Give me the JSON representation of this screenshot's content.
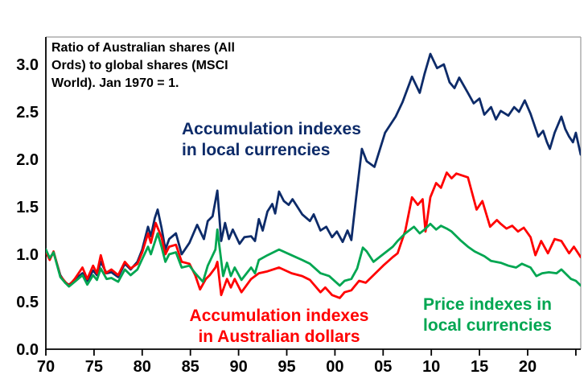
{
  "figure": {
    "background": "#ffffff",
    "title": {
      "line1": "Ratio of Australian shares (All",
      "line2": "Ords) to global shares (MSCI",
      "line3": "World). Jan 1970 = 1."
    },
    "annotations": {
      "local_accum": {
        "line1": "Accumulation indexes",
        "line2": "in local currencies",
        "color": "#0d2b69"
      },
      "aud_accum": {
        "line1": "Accumulation indexes",
        "line2": "in Australian dollars",
        "color": "#ff0000"
      },
      "price_local": {
        "line1": "Price indexes in",
        "line2": "local currencies",
        "color": "#00a651"
      }
    },
    "colors": {
      "axis": "#000000",
      "border_light": "#9a9a9a",
      "text": "#000000"
    }
  },
  "chart_data": {
    "type": "line",
    "title": "Ratio of Australian shares (All Ords) to global shares (MSCI World). Jan 1970 = 1.",
    "xlabel": "",
    "ylabel": "",
    "grid": false,
    "legend_position": "inline-colored-annotations",
    "x_axis": {
      "tick_labels": [
        "70",
        "75",
        "80",
        "85",
        "90",
        "95",
        "00",
        "05",
        "10",
        "15",
        "20"
      ],
      "tick_years": [
        1970,
        1975,
        1980,
        1985,
        1990,
        1995,
        2000,
        2005,
        2010,
        2015,
        2020
      ],
      "unlabeled_tick_years": [
        2025
      ],
      "range": [
        1970,
        2025.5
      ]
    },
    "y_axis": {
      "tick_labels": [
        "0.0",
        "0.5",
        "1.0",
        "1.5",
        "2.0",
        "2.5",
        "3.0"
      ],
      "tick_values": [
        0,
        0.5,
        1.0,
        1.5,
        2.0,
        2.5,
        3.0
      ],
      "range": [
        0,
        3.29
      ]
    },
    "series": [
      {
        "name": "Accumulation indexes in local currencies",
        "color": "#0d2b69",
        "points": [
          [
            1970.0,
            1.05
          ],
          [
            1970.4,
            0.95
          ],
          [
            1970.8,
            1.02
          ],
          [
            1971.5,
            0.78
          ],
          [
            1972.0,
            0.7
          ],
          [
            1972.4,
            0.68
          ],
          [
            1973.0,
            0.73
          ],
          [
            1973.8,
            0.8
          ],
          [
            1974.3,
            0.72
          ],
          [
            1974.9,
            0.83
          ],
          [
            1975.3,
            0.78
          ],
          [
            1975.7,
            0.92
          ],
          [
            1976.3,
            0.8
          ],
          [
            1976.8,
            0.81
          ],
          [
            1977.5,
            0.76
          ],
          [
            1978.2,
            0.9
          ],
          [
            1978.8,
            0.84
          ],
          [
            1979.5,
            0.92
          ],
          [
            1980.0,
            1.05
          ],
          [
            1980.6,
            1.29
          ],
          [
            1980.9,
            1.19
          ],
          [
            1981.3,
            1.38
          ],
          [
            1981.6,
            1.47
          ],
          [
            1982.0,
            1.28
          ],
          [
            1982.4,
            1.05
          ],
          [
            1982.8,
            1.16
          ],
          [
            1983.5,
            1.22
          ],
          [
            1984.1,
            1.0
          ],
          [
            1984.9,
            1.12
          ],
          [
            1985.7,
            1.31
          ],
          [
            1986.4,
            1.16
          ],
          [
            1986.8,
            1.35
          ],
          [
            1987.3,
            1.4
          ],
          [
            1987.8,
            1.67
          ],
          [
            1988.2,
            1.14
          ],
          [
            1988.6,
            1.33
          ],
          [
            1989.0,
            1.16
          ],
          [
            1989.4,
            1.26
          ],
          [
            1990.1,
            1.11
          ],
          [
            1990.6,
            1.18
          ],
          [
            1991.3,
            1.19
          ],
          [
            1991.7,
            1.14
          ],
          [
            1992.1,
            1.37
          ],
          [
            1992.5,
            1.25
          ],
          [
            1993.0,
            1.45
          ],
          [
            1993.5,
            1.53
          ],
          [
            1993.8,
            1.43
          ],
          [
            1994.2,
            1.66
          ],
          [
            1994.7,
            1.56
          ],
          [
            1995.2,
            1.52
          ],
          [
            1995.6,
            1.58
          ],
          [
            1996.6,
            1.42
          ],
          [
            1997.4,
            1.35
          ],
          [
            1997.8,
            1.42
          ],
          [
            1998.5,
            1.25
          ],
          [
            1999.1,
            1.29
          ],
          [
            1999.7,
            1.18
          ],
          [
            2000.2,
            1.24
          ],
          [
            2000.8,
            1.13
          ],
          [
            2001.3,
            1.25
          ],
          [
            2001.7,
            1.15
          ],
          [
            2002.2,
            1.6
          ],
          [
            2002.8,
            2.11
          ],
          [
            2003.3,
            1.98
          ],
          [
            2004.1,
            1.92
          ],
          [
            2005.2,
            2.28
          ],
          [
            2006.3,
            2.45
          ],
          [
            2007.0,
            2.6
          ],
          [
            2008.0,
            2.87
          ],
          [
            2008.8,
            2.7
          ],
          [
            2009.3,
            2.9
          ],
          [
            2009.9,
            3.11
          ],
          [
            2010.6,
            2.96
          ],
          [
            2011.3,
            3.0
          ],
          [
            2011.9,
            2.81
          ],
          [
            2012.4,
            2.75
          ],
          [
            2012.9,
            2.86
          ],
          [
            2013.8,
            2.7
          ],
          [
            2014.4,
            2.59
          ],
          [
            2015.0,
            2.64
          ],
          [
            2015.5,
            2.47
          ],
          [
            2016.2,
            2.55
          ],
          [
            2016.7,
            2.42
          ],
          [
            2017.2,
            2.51
          ],
          [
            2018.0,
            2.46
          ],
          [
            2018.6,
            2.55
          ],
          [
            2019.1,
            2.5
          ],
          [
            2019.7,
            2.62
          ],
          [
            2020.3,
            2.48
          ],
          [
            2021.1,
            2.24
          ],
          [
            2021.6,
            2.3
          ],
          [
            2022.0,
            2.18
          ],
          [
            2022.3,
            2.11
          ],
          [
            2022.8,
            2.28
          ],
          [
            2023.5,
            2.45
          ],
          [
            2023.9,
            2.32
          ],
          [
            2024.3,
            2.24
          ],
          [
            2024.7,
            2.18
          ],
          [
            2025.0,
            2.28
          ],
          [
            2025.5,
            2.05
          ]
        ]
      },
      {
        "name": "Accumulation indexes in Australian dollars",
        "color": "#ff0000",
        "points": [
          [
            1970.0,
            1.03
          ],
          [
            1970.4,
            0.94
          ],
          [
            1970.8,
            1.03
          ],
          [
            1971.5,
            0.77
          ],
          [
            1972.0,
            0.71
          ],
          [
            1972.4,
            0.67
          ],
          [
            1973.0,
            0.74
          ],
          [
            1973.8,
            0.86
          ],
          [
            1974.3,
            0.74
          ],
          [
            1974.9,
            0.88
          ],
          [
            1975.3,
            0.8
          ],
          [
            1975.7,
            0.99
          ],
          [
            1976.2,
            0.8
          ],
          [
            1976.8,
            0.84
          ],
          [
            1977.5,
            0.78
          ],
          [
            1978.2,
            0.92
          ],
          [
            1978.8,
            0.85
          ],
          [
            1979.5,
            0.9
          ],
          [
            1980.0,
            1.02
          ],
          [
            1980.6,
            1.22
          ],
          [
            1980.9,
            1.12
          ],
          [
            1981.4,
            1.33
          ],
          [
            1982.0,
            1.18
          ],
          [
            1982.4,
            1.0
          ],
          [
            1982.8,
            1.08
          ],
          [
            1983.5,
            1.1
          ],
          [
            1984.1,
            0.92
          ],
          [
            1984.9,
            0.9
          ],
          [
            1985.5,
            0.78
          ],
          [
            1986.0,
            0.63
          ],
          [
            1986.6,
            0.74
          ],
          [
            1987.0,
            0.78
          ],
          [
            1987.6,
            0.86
          ],
          [
            1987.8,
            0.92
          ],
          [
            1988.2,
            0.57
          ],
          [
            1988.8,
            0.74
          ],
          [
            1989.2,
            0.65
          ],
          [
            1989.6,
            0.74
          ],
          [
            1990.3,
            0.6
          ],
          [
            1991.3,
            0.74
          ],
          [
            1992.1,
            0.8
          ],
          [
            1993.0,
            0.82
          ],
          [
            1994.2,
            0.86
          ],
          [
            1995.5,
            0.8
          ],
          [
            1996.6,
            0.77
          ],
          [
            1997.4,
            0.73
          ],
          [
            1998.5,
            0.6
          ],
          [
            1999.0,
            0.65
          ],
          [
            1999.7,
            0.57
          ],
          [
            2000.5,
            0.54
          ],
          [
            2001.0,
            0.6
          ],
          [
            2001.7,
            0.62
          ],
          [
            2002.5,
            0.72
          ],
          [
            2003.2,
            0.7
          ],
          [
            2004.0,
            0.78
          ],
          [
            2005.0,
            0.88
          ],
          [
            2006.0,
            0.97
          ],
          [
            2006.5,
            1.01
          ],
          [
            2007.3,
            1.25
          ],
          [
            2008.0,
            1.6
          ],
          [
            2008.6,
            1.52
          ],
          [
            2009.1,
            1.58
          ],
          [
            2009.4,
            1.24
          ],
          [
            2009.9,
            1.6
          ],
          [
            2010.5,
            1.75
          ],
          [
            2011.0,
            1.7
          ],
          [
            2011.6,
            1.86
          ],
          [
            2012.1,
            1.8
          ],
          [
            2012.6,
            1.85
          ],
          [
            2013.2,
            1.83
          ],
          [
            2013.8,
            1.81
          ],
          [
            2014.7,
            1.47
          ],
          [
            2015.3,
            1.56
          ],
          [
            2016.1,
            1.29
          ],
          [
            2016.8,
            1.36
          ],
          [
            2017.2,
            1.32
          ],
          [
            2017.8,
            1.27
          ],
          [
            2018.4,
            1.3
          ],
          [
            2019.0,
            1.24
          ],
          [
            2019.6,
            1.28
          ],
          [
            2020.3,
            1.18
          ],
          [
            2020.8,
            0.99
          ],
          [
            2021.4,
            1.14
          ],
          [
            2022.1,
            1.01
          ],
          [
            2022.8,
            1.16
          ],
          [
            2023.5,
            1.14
          ],
          [
            2024.3,
            1.01
          ],
          [
            2024.8,
            1.08
          ],
          [
            2025.5,
            0.97
          ]
        ]
      },
      {
        "name": "Price indexes in local currencies",
        "color": "#00a651",
        "points": [
          [
            1970.0,
            1.05
          ],
          [
            1970.4,
            0.96
          ],
          [
            1970.8,
            1.02
          ],
          [
            1971.5,
            0.76
          ],
          [
            1972.0,
            0.7
          ],
          [
            1972.4,
            0.66
          ],
          [
            1973.0,
            0.71
          ],
          [
            1973.8,
            0.78
          ],
          [
            1974.3,
            0.68
          ],
          [
            1974.9,
            0.78
          ],
          [
            1975.3,
            0.73
          ],
          [
            1975.7,
            0.85
          ],
          [
            1976.3,
            0.74
          ],
          [
            1976.8,
            0.75
          ],
          [
            1977.5,
            0.71
          ],
          [
            1978.2,
            0.84
          ],
          [
            1978.8,
            0.78
          ],
          [
            1979.5,
            0.84
          ],
          [
            1980.0,
            0.95
          ],
          [
            1980.6,
            1.08
          ],
          [
            1980.9,
            1.0
          ],
          [
            1981.6,
            1.22
          ],
          [
            1982.0,
            1.08
          ],
          [
            1982.4,
            0.92
          ],
          [
            1982.8,
            1.0
          ],
          [
            1983.5,
            1.02
          ],
          [
            1984.1,
            0.86
          ],
          [
            1984.9,
            0.88
          ],
          [
            1985.5,
            0.8
          ],
          [
            1986.3,
            0.71
          ],
          [
            1986.8,
            0.88
          ],
          [
            1987.6,
            1.05
          ],
          [
            1987.8,
            1.26
          ],
          [
            1988.4,
            0.77
          ],
          [
            1988.8,
            0.91
          ],
          [
            1989.2,
            0.77
          ],
          [
            1989.6,
            0.86
          ],
          [
            1990.3,
            0.73
          ],
          [
            1991.3,
            0.86
          ],
          [
            1991.7,
            0.8
          ],
          [
            1992.1,
            0.94
          ],
          [
            1993.0,
            0.99
          ],
          [
            1994.2,
            1.05
          ],
          [
            1995.5,
            0.99
          ],
          [
            1996.6,
            0.94
          ],
          [
            1997.4,
            0.9
          ],
          [
            1998.5,
            0.8
          ],
          [
            1999.4,
            0.77
          ],
          [
            2000.5,
            0.67
          ],
          [
            2001.0,
            0.72
          ],
          [
            2001.7,
            0.74
          ],
          [
            2002.3,
            0.85
          ],
          [
            2002.9,
            1.07
          ],
          [
            2003.3,
            1.03
          ],
          [
            2004.0,
            0.92
          ],
          [
            2005.0,
            1.0
          ],
          [
            2006.0,
            1.08
          ],
          [
            2006.5,
            1.14
          ],
          [
            2007.3,
            1.22
          ],
          [
            2008.2,
            1.29
          ],
          [
            2008.8,
            1.22
          ],
          [
            2009.3,
            1.26
          ],
          [
            2009.9,
            1.32
          ],
          [
            2010.5,
            1.26
          ],
          [
            2011.0,
            1.3
          ],
          [
            2011.6,
            1.27
          ],
          [
            2012.1,
            1.24
          ],
          [
            2013.0,
            1.15
          ],
          [
            2013.8,
            1.08
          ],
          [
            2014.5,
            1.03
          ],
          [
            2015.5,
            0.98
          ],
          [
            2016.2,
            0.93
          ],
          [
            2017.2,
            0.91
          ],
          [
            2018.0,
            0.88
          ],
          [
            2018.8,
            0.86
          ],
          [
            2019.4,
            0.9
          ],
          [
            2020.3,
            0.86
          ],
          [
            2020.9,
            0.77
          ],
          [
            2021.5,
            0.8
          ],
          [
            2022.2,
            0.81
          ],
          [
            2023.0,
            0.8
          ],
          [
            2023.5,
            0.84
          ],
          [
            2024.5,
            0.74
          ],
          [
            2025.0,
            0.72
          ],
          [
            2025.5,
            0.67
          ]
        ]
      }
    ]
  }
}
